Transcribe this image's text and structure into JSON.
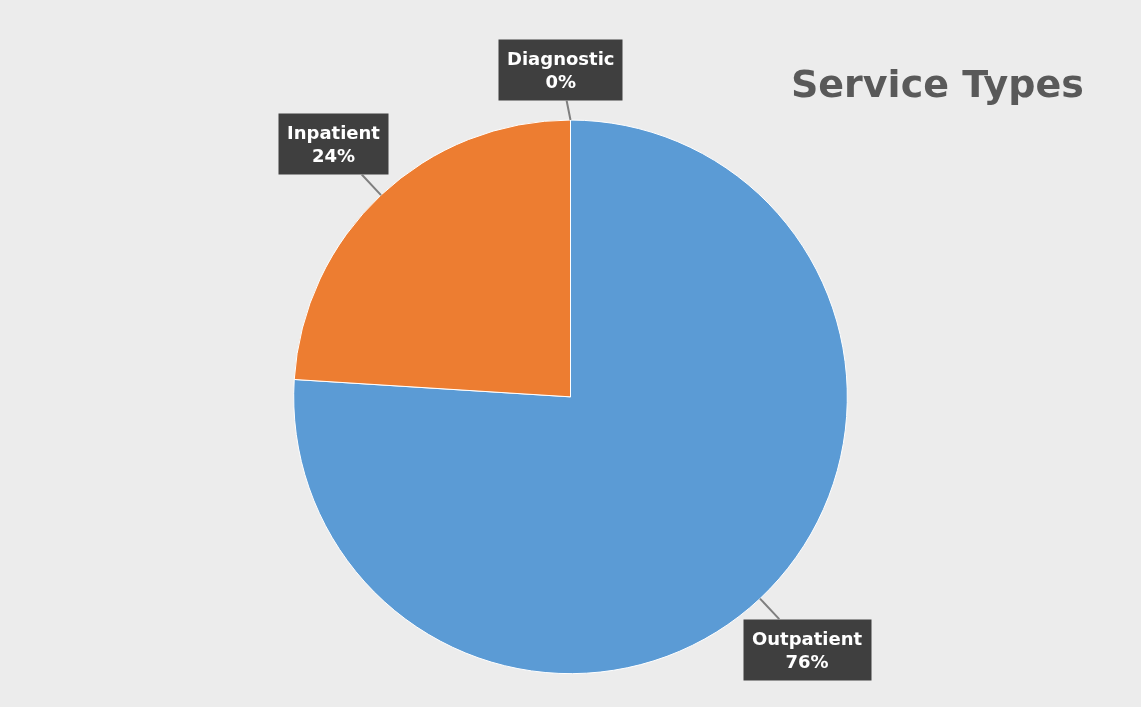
{
  "chart_data": {
    "type": "pie",
    "title": "Service Types",
    "categories": [
      "Outpatient",
      "Inpatient",
      "Diagnostic"
    ],
    "values": [
      76,
      24,
      0
    ],
    "colors": [
      "#5b9bd5",
      "#ed7d31",
      "#a5a5a5"
    ],
    "value_labels": [
      "76%",
      "24%",
      "0%"
    ],
    "legend": false
  }
}
